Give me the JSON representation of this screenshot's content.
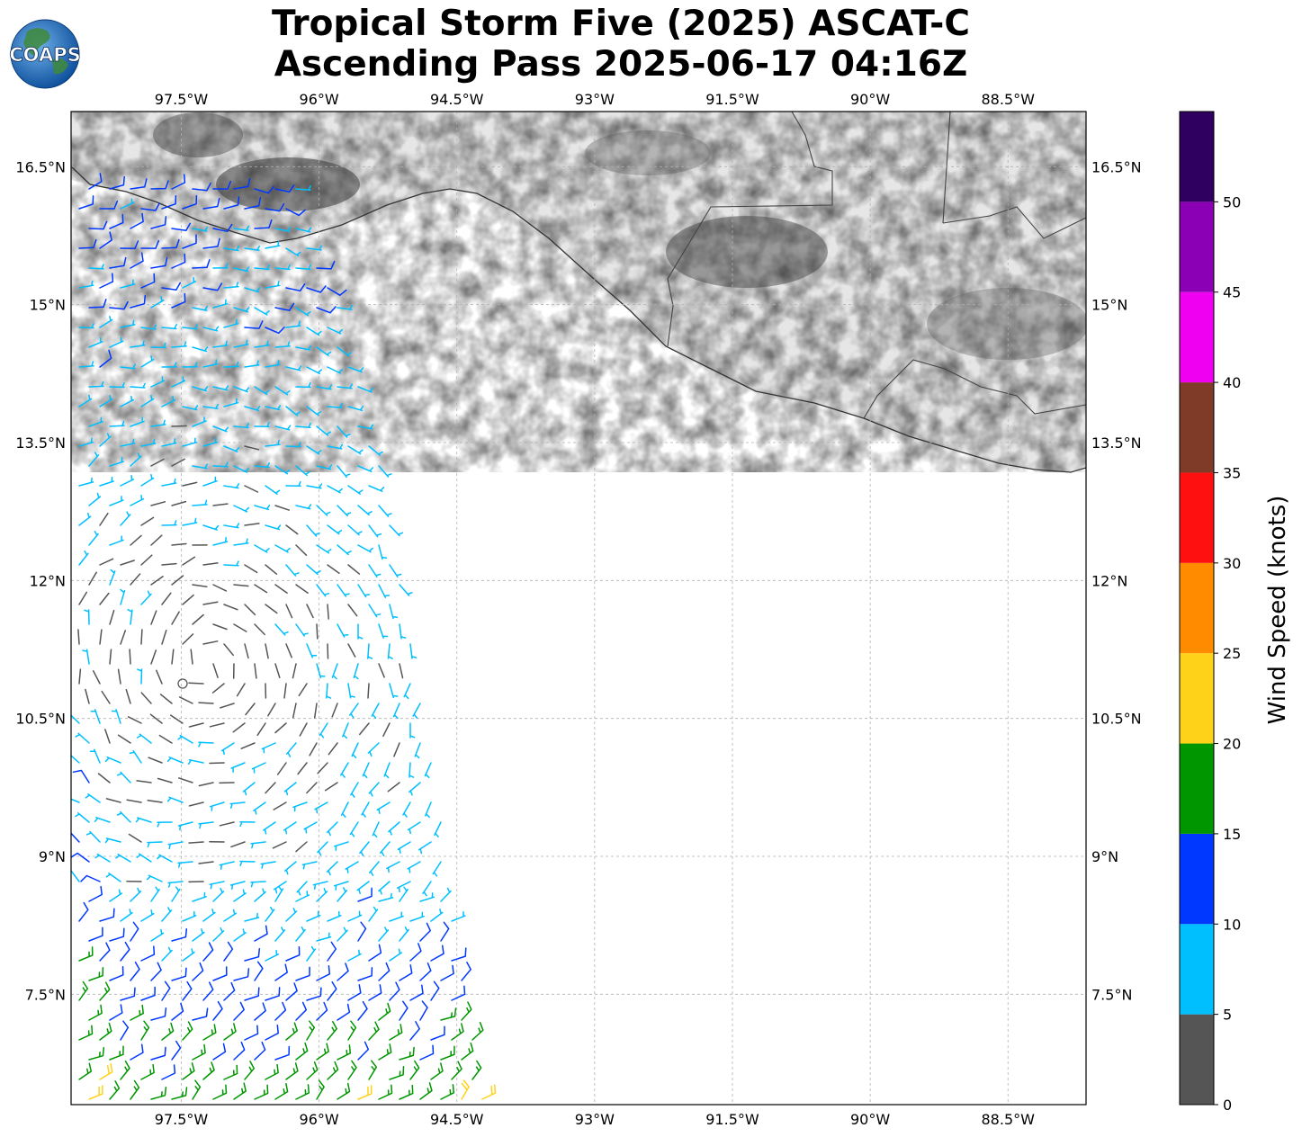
{
  "title": {
    "line1": "Tropical Storm Five (2025) ASCAT-C",
    "line2": "Ascending Pass 2025-06-17 04:16Z"
  },
  "logo": {
    "text": "COAPS",
    "icon": "earth-globe-logo"
  },
  "map": {
    "lon_range": [
      -98.7,
      -87.65
    ],
    "lat_range": [
      6.3,
      17.1
    ],
    "lon_ticks": [
      "97.5°W",
      "96°W",
      "94.5°W",
      "93°W",
      "91.5°W",
      "90°W",
      "88.5°W"
    ],
    "lon_tick_values": [
      -97.5,
      -96,
      -94.5,
      -93,
      -91.5,
      -90,
      -88.5
    ],
    "lat_ticks": [
      "16.5°N",
      "15°N",
      "13.5°N",
      "12°N",
      "10.5°N",
      "9°N",
      "7.5°N"
    ],
    "lat_tick_values": [
      16.5,
      15,
      13.5,
      12,
      10.5,
      9,
      7.5
    ],
    "gridlines": true,
    "terrain_shading": "grayscale"
  },
  "colorbar": {
    "title": "Wind Speed (knots)",
    "ticks": [
      "0",
      "5",
      "10",
      "15",
      "20",
      "25",
      "30",
      "35",
      "40",
      "45",
      "50"
    ],
    "bins": [
      {
        "min": 0,
        "max": 5,
        "color": "#555555"
      },
      {
        "min": 5,
        "max": 10,
        "color": "#00bfff"
      },
      {
        "min": 10,
        "max": 15,
        "color": "#0038ff"
      },
      {
        "min": 15,
        "max": 20,
        "color": "#009600"
      },
      {
        "min": 20,
        "max": 25,
        "color": "#ffd21a"
      },
      {
        "min": 25,
        "max": 30,
        "color": "#ff8c00"
      },
      {
        "min": 30,
        "max": 35,
        "color": "#ff1010"
      },
      {
        "min": 35,
        "max": 40,
        "color": "#7f3a28"
      },
      {
        "min": 40,
        "max": 45,
        "color": "#f000f0"
      },
      {
        "min": 45,
        "max": 50,
        "color": "#8b00b4"
      },
      {
        "min": 50,
        "max": 55,
        "color": "#300060"
      }
    ]
  }
}
